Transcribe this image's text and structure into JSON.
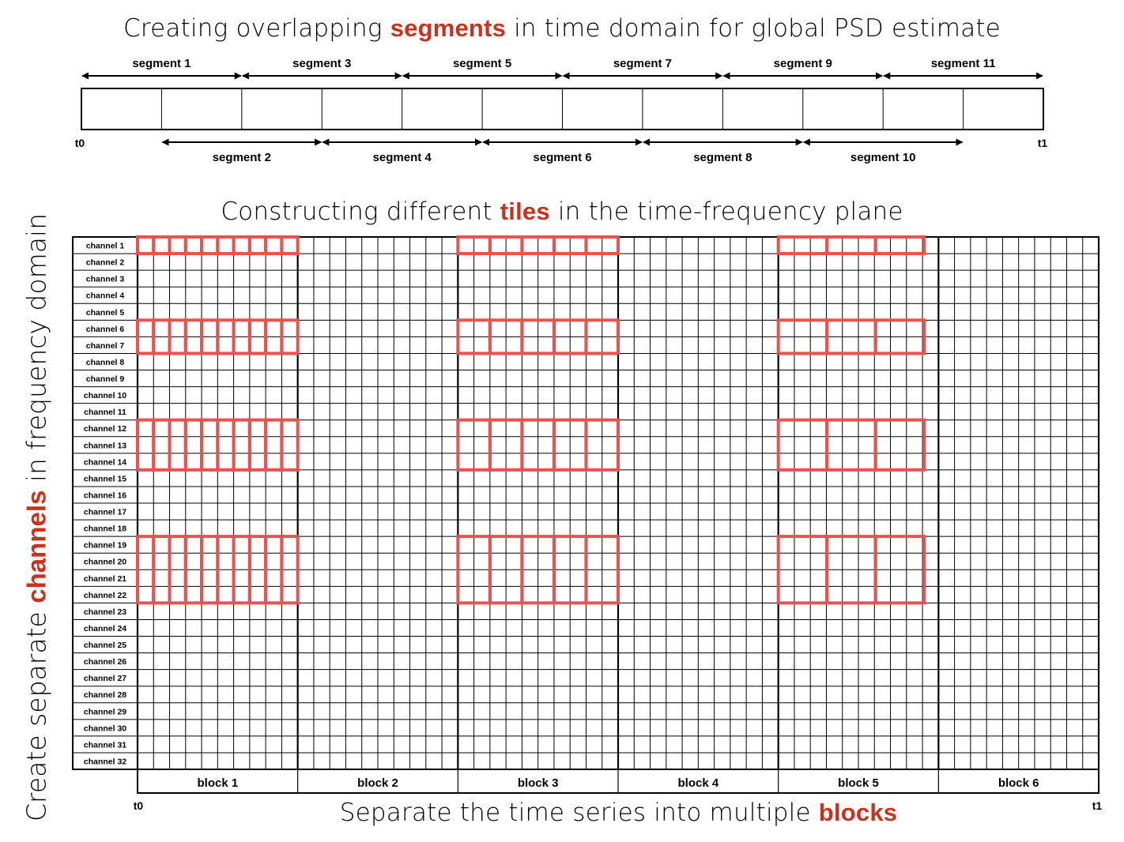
{
  "titles": {
    "top": {
      "pre": "Creating overlapping ",
      "highlight": "segments",
      "post": " in time domain for global PSD estimate"
    },
    "middle": {
      "pre": "Constructing different ",
      "highlight": "tiles",
      "post": " in the time-frequency plane"
    },
    "bottom": {
      "pre": "Separate the time series into multiple ",
      "highlight": "blocks",
      "post": ""
    },
    "vertical": {
      "pre": "Create separate ",
      "highlight": "channels",
      "post": " in frequency domain"
    }
  },
  "colors": {
    "accent": "#c8321e",
    "tile": "#e8524f",
    "line": "#000000"
  },
  "segments": {
    "top": [
      "segment 1",
      "segment 3",
      "segment 5",
      "segment 7",
      "segment 9",
      "segment 11"
    ],
    "bottom": [
      "segment 2",
      "segment 4",
      "segment 6",
      "segment 8",
      "segment 10"
    ],
    "start_label": "t0",
    "end_label": "t1",
    "bar_cells": 12
  },
  "grid": {
    "channels": [
      "channel 1",
      "channel 2",
      "channel 3",
      "channel 4",
      "channel 5",
      "channel 6",
      "channel 7",
      "channel 8",
      "channel 9",
      "channel 10",
      "channel 11",
      "channel 12",
      "channel 13",
      "channel 14",
      "channel 15",
      "channel 16",
      "channel 17",
      "channel 18",
      "channel 19",
      "channel 20",
      "channel 21",
      "channel 22",
      "channel 23",
      "channel 24",
      "channel 25",
      "channel 26",
      "channel 27",
      "channel 28",
      "channel 29",
      "channel 30",
      "channel 31",
      "channel 32"
    ],
    "blocks": [
      "block 1",
      "block 2",
      "block 3",
      "block 4",
      "block 5",
      "block 6"
    ],
    "columns_per_block": 10,
    "start_label": "t0",
    "end_label": "t1"
  },
  "tiles": {
    "blocks_with_tiles": [
      1,
      3,
      5
    ],
    "channel_groups": [
      [
        1,
        1
      ],
      [
        6,
        7
      ],
      [
        12,
        14
      ],
      [
        19,
        22
      ]
    ],
    "tiles_per_group_by_block": {
      "1": 10,
      "3": 5,
      "5": 3
    }
  }
}
